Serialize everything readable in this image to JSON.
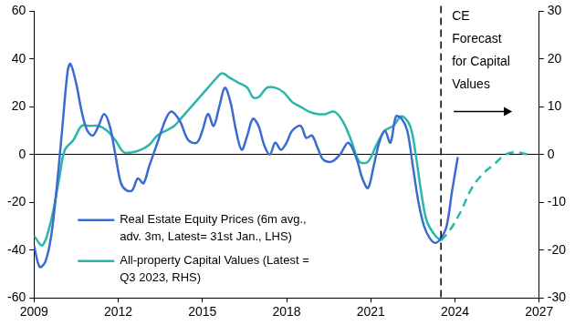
{
  "chart_data": {
    "type": "line",
    "grid": false,
    "legend": "lower left",
    "xlim": [
      2009,
      2027
    ],
    "xticks": [
      2009,
      2012,
      2015,
      2018,
      2021,
      2024,
      2027
    ],
    "ylim": [
      -60,
      60
    ],
    "yticks": [
      -60,
      -40,
      -20,
      0,
      20,
      40,
      60
    ],
    "y2lim": [
      -30,
      30
    ],
    "y2ticks": [
      -30,
      -20,
      -10,
      0,
      10,
      20,
      30
    ],
    "annotations": [
      {
        "x": 2023.5,
        "text": "CE Forecast for Capital Values"
      }
    ],
    "series": [
      {
        "name": "Real Estate Equity Prices (6m avg., adv. 3m, Latest= 31st Jan., LHS)",
        "color": "#3a6bd0",
        "axis": "y",
        "marker": "none",
        "line_style": "solid",
        "x": [
          2009.0,
          2009.2,
          2009.4,
          2009.6,
          2009.8,
          2010.0,
          2010.2,
          2010.3,
          2010.5,
          2010.7,
          2010.9,
          2011.1,
          2011.3,
          2011.5,
          2011.7,
          2011.9,
          2012.1,
          2012.3,
          2012.5,
          2012.7,
          2012.9,
          2013.1,
          2013.4,
          2013.7,
          2013.9,
          2014.2,
          2014.5,
          2014.8,
          2015.0,
          2015.2,
          2015.4,
          2015.6,
          2015.8,
          2016.0,
          2016.2,
          2016.4,
          2016.6,
          2016.8,
          2017.0,
          2017.2,
          2017.4,
          2017.6,
          2017.8,
          2018.0,
          2018.2,
          2018.5,
          2018.7,
          2018.9,
          2019.1,
          2019.3,
          2019.6,
          2019.9,
          2020.2,
          2020.5,
          2020.7,
          2020.9,
          2021.1,
          2021.3,
          2021.5,
          2021.7,
          2021.9,
          2022.1,
          2022.3,
          2022.5,
          2022.7,
          2022.9,
          2023.1,
          2023.3,
          2023.5,
          2023.7,
          2023.9,
          2024.1
        ],
        "values": [
          -38,
          -47,
          -45,
          -35,
          -15,
          10,
          35,
          38,
          30,
          18,
          10,
          8,
          12,
          17,
          12,
          0,
          -12,
          -15,
          -15,
          -10,
          -12,
          -5,
          5,
          15,
          18,
          14,
          6,
          5,
          10,
          17,
          12,
          20,
          28,
          22,
          10,
          2,
          8,
          15,
          12,
          4,
          0,
          5,
          2,
          5,
          10,
          12,
          7,
          8,
          3,
          -2,
          -3,
          0,
          5,
          -2,
          -10,
          -14,
          -5,
          5,
          10,
          5,
          16,
          15,
          10,
          -5,
          -20,
          -30,
          -35,
          -37,
          -35,
          -30,
          -15,
          -1
        ]
      },
      {
        "name": "All-property Capital Values (Latest = Q3 2023, RHS)",
        "color": "#2ab7a9",
        "axis": "y2",
        "marker": "none",
        "line_style": "solid",
        "x": [
          2009.0,
          2009.3,
          2009.6,
          2009.9,
          2010.1,
          2010.4,
          2010.7,
          2011.0,
          2011.3,
          2011.6,
          2011.9,
          2012.2,
          2012.5,
          2012.8,
          2013.1,
          2013.4,
          2013.7,
          2014.0,
          2014.3,
          2014.6,
          2014.9,
          2015.2,
          2015.5,
          2015.7,
          2016.0,
          2016.3,
          2016.6,
          2016.8,
          2017.0,
          2017.3,
          2017.6,
          2017.9,
          2018.2,
          2018.5,
          2018.8,
          2019.1,
          2019.4,
          2019.7,
          2020.0,
          2020.3,
          2020.6,
          2020.9,
          2021.2,
          2021.5,
          2021.8,
          2022.1,
          2022.4,
          2022.6,
          2022.8,
          2023.0,
          2023.3,
          2023.5
        ],
        "values": [
          -17,
          -19,
          -14,
          -5,
          1,
          3,
          6,
          6,
          6,
          5,
          3,
          0.5,
          0.5,
          1,
          2,
          4,
          5,
          6,
          8,
          10,
          12,
          14,
          16,
          17,
          16,
          15,
          14,
          12,
          12,
          14,
          14,
          13,
          11,
          10,
          9,
          8.5,
          8.5,
          9,
          7,
          3,
          -1.5,
          -1.5,
          2,
          5,
          6,
          8,
          6,
          0,
          -8,
          -14,
          -17,
          -18
        ]
      },
      {
        "name": "CE Forecast for Capital Values",
        "color": "#2ab7a9",
        "axis": "y2",
        "marker": "none",
        "line_style": "dashed",
        "x": [
          2023.5,
          2023.8,
          2024.2,
          2024.6,
          2025.0,
          2025.4,
          2025.8,
          2026.2,
          2026.6
        ],
        "values": [
          -18,
          -16,
          -12,
          -7,
          -4,
          -2,
          0,
          0.5,
          0
        ]
      }
    ]
  }
}
